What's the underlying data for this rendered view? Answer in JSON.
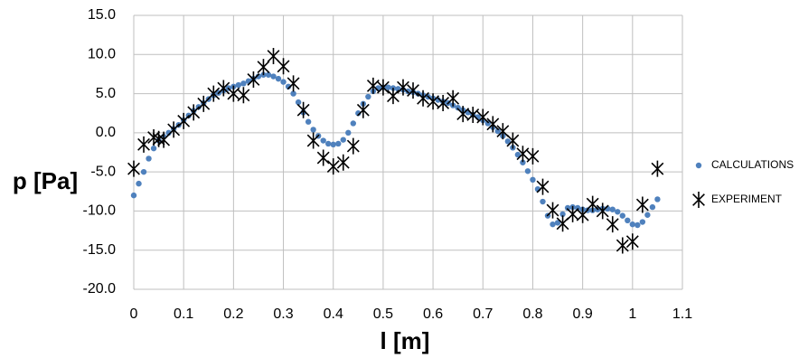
{
  "chart_data": {
    "type": "scatter",
    "xlabel": "l [m]",
    "ylabel": "p [Pa]",
    "xlim": [
      0,
      1.1
    ],
    "xticks": [
      0,
      0.1,
      0.2,
      0.3,
      0.4,
      0.5,
      0.6,
      0.7,
      0.8,
      0.9,
      1,
      1.1
    ],
    "ylim": [
      -20,
      15
    ],
    "yticks": [
      {
        "value": -20,
        "label": "-20.0"
      },
      {
        "value": -15,
        "label": "-15.0"
      },
      {
        "value": -10,
        "label": "-10.0"
      },
      {
        "value": -5,
        "label": "-5.0"
      },
      {
        "value": 0,
        "label": "0.0"
      },
      {
        "value": 5,
        "label": "5.0"
      },
      {
        "value": 10,
        "label": "10.0"
      },
      {
        "value": 15,
        "label": "15.0"
      }
    ],
    "grid": true,
    "legend": "right",
    "series": [
      {
        "name": "CALCULATIONS",
        "color": "#4f81bd",
        "marker": "circle",
        "x": [
          0,
          0.01,
          0.02,
          0.03,
          0.04,
          0.05,
          0.06,
          0.07,
          0.08,
          0.09,
          0.1,
          0.11,
          0.12,
          0.13,
          0.14,
          0.15,
          0.16,
          0.17,
          0.18,
          0.19,
          0.2,
          0.21,
          0.22,
          0.23,
          0.24,
          0.25,
          0.26,
          0.27,
          0.28,
          0.29,
          0.3,
          0.31,
          0.32,
          0.33,
          0.34,
          0.35,
          0.36,
          0.37,
          0.38,
          0.39,
          0.4,
          0.41,
          0.42,
          0.43,
          0.44,
          0.45,
          0.46,
          0.47,
          0.48,
          0.49,
          0.5,
          0.51,
          0.52,
          0.53,
          0.54,
          0.55,
          0.56,
          0.57,
          0.58,
          0.59,
          0.6,
          0.61,
          0.62,
          0.63,
          0.64,
          0.65,
          0.66,
          0.67,
          0.68,
          0.69,
          0.7,
          0.71,
          0.72,
          0.73,
          0.74,
          0.75,
          0.76,
          0.77,
          0.78,
          0.79,
          0.8,
          0.81,
          0.82,
          0.83,
          0.84,
          0.85,
          0.86,
          0.87,
          0.88,
          0.89,
          0.9,
          0.91,
          0.92,
          0.93,
          0.94,
          0.95,
          0.96,
          0.97,
          0.98,
          0.99,
          1,
          1.01,
          1.02,
          1.03,
          1.04,
          1.05
        ],
        "values": [
          -8.0,
          -6.5,
          -5.0,
          -3.3,
          -2.0,
          -1.0,
          -0.5,
          0,
          0.5,
          1.0,
          1.6,
          2.2,
          2.8,
          3.3,
          3.8,
          4.3,
          4.8,
          5.1,
          5.4,
          5.7,
          5.9,
          6.1,
          6.3,
          6.6,
          6.9,
          7.2,
          7.4,
          7.4,
          7.2,
          6.9,
          6.5,
          5.9,
          5.0,
          3.9,
          2.6,
          1.4,
          0.4,
          -0.4,
          -1.0,
          -1.4,
          -1.5,
          -1.4,
          -0.9,
          0,
          1.2,
          2.5,
          3.7,
          4.6,
          5.3,
          5.7,
          5.8,
          5.8,
          5.7,
          5.6,
          5.5,
          5.3,
          5.2,
          5.0,
          4.8,
          4.6,
          4.4,
          4.2,
          4.0,
          3.8,
          3.5,
          3.2,
          2.9,
          2.6,
          2.3,
          2.0,
          1.6,
          1.2,
          0.7,
          0.2,
          -0.4,
          -1.1,
          -1.9,
          -2.8,
          -3.8,
          -4.9,
          -6.0,
          -7.2,
          -8.8,
          -10.6,
          -11.7,
          -11.5,
          -10.4,
          -9.6,
          -9.5,
          -9.6,
          -9.8,
          -9.9,
          -9.9,
          -9.8,
          -9.7,
          -9.7,
          -9.8,
          -10.1,
          -10.6,
          -11.2,
          -11.7,
          -11.8,
          -11.4,
          -10.5,
          -9.5,
          -8.5
        ]
      },
      {
        "name": "EXPERIMENT",
        "color": "#000000",
        "marker": "asterisk",
        "x": [
          0,
          0.02,
          0.04,
          0.05,
          0.06,
          0.08,
          0.1,
          0.12,
          0.14,
          0.16,
          0.18,
          0.2,
          0.22,
          0.24,
          0.26,
          0.28,
          0.3,
          0.32,
          0.34,
          0.36,
          0.38,
          0.4,
          0.42,
          0.44,
          0.46,
          0.48,
          0.5,
          0.52,
          0.54,
          0.56,
          0.58,
          0.6,
          0.62,
          0.64,
          0.66,
          0.68,
          0.7,
          0.72,
          0.74,
          0.76,
          0.78,
          0.8,
          0.82,
          0.84,
          0.86,
          0.88,
          0.9,
          0.92,
          0.94,
          0.96,
          0.98,
          1,
          1.02,
          1.05
        ],
        "values": [
          -4.6,
          -1.5,
          -0.6,
          -0.8,
          -0.9,
          0.4,
          1.5,
          2.6,
          3.7,
          5.0,
          5.7,
          5.0,
          4.8,
          6.8,
          8.4,
          9.8,
          8.5,
          6.3,
          2.9,
          -1.0,
          -3.2,
          -4.3,
          -3.8,
          -1.7,
          2.9,
          6.0,
          5.8,
          4.7,
          5.8,
          5.4,
          4.4,
          4.0,
          3.8,
          4.4,
          2.4,
          2.3,
          2.0,
          1.1,
          0.2,
          -1.0,
          -2.7,
          -3.0,
          -6.9,
          -9.9,
          -11.6,
          -10.4,
          -10.5,
          -9.1,
          -10.0,
          -11.7,
          -14.4,
          -13.9,
          -9.2,
          -4.6
        ]
      }
    ]
  }
}
